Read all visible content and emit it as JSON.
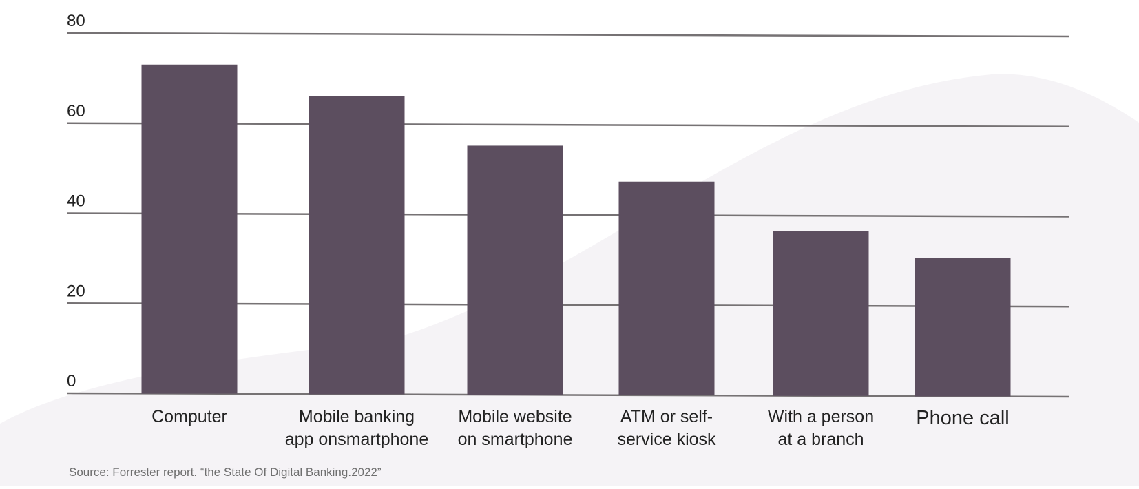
{
  "chart_data": {
    "type": "bar",
    "title": "",
    "xlabel": "",
    "ylabel": "",
    "ylim": [
      0,
      80
    ],
    "yticks": [
      0,
      20,
      40,
      60,
      80
    ],
    "grid": true,
    "categories": [
      [
        "Computer"
      ],
      [
        "Mobile banking",
        "app onsmartphone"
      ],
      [
        "Mobile website",
        "on smartphone"
      ],
      [
        "ATM or self-",
        "service kiosk"
      ],
      [
        "With a person",
        "at a branch"
      ],
      [
        "Phone call"
      ]
    ],
    "values": [
      73,
      66,
      55,
      47,
      36,
      30
    ],
    "colors": {
      "bar": "#5c4e5f",
      "grid": "#767274",
      "background_shape": "#f5f3f6"
    }
  },
  "source_note": "Source: Forrester report. “the State Of Digital Banking.2022”"
}
